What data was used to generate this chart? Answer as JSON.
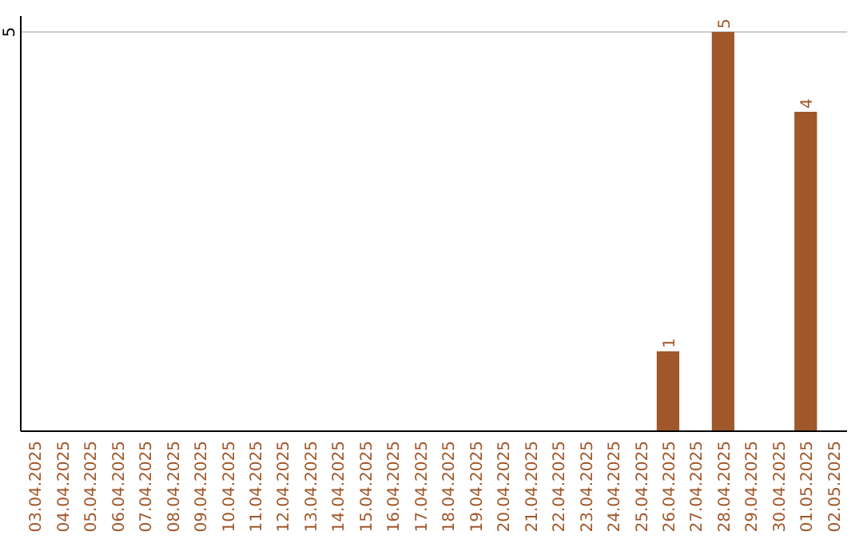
{
  "chart_data": {
    "type": "bar",
    "categories": [
      "03.04.2025",
      "04.04.2025",
      "05.04.2025",
      "06.04.2025",
      "07.04.2025",
      "08.04.2025",
      "09.04.2025",
      "10.04.2025",
      "11.04.2025",
      "12.04.2025",
      "13.04.2025",
      "14.04.2025",
      "15.04.2025",
      "16.04.2025",
      "17.04.2025",
      "18.04.2025",
      "19.04.2025",
      "20.04.2025",
      "21.04.2025",
      "22.04.2025",
      "23.04.2025",
      "24.04.2025",
      "25.04.2025",
      "26.04.2025",
      "27.04.2025",
      "28.04.2025",
      "29.04.2025",
      "30.04.2025",
      "01.05.2025",
      "02.05.2025"
    ],
    "values": [
      null,
      null,
      null,
      null,
      null,
      null,
      null,
      null,
      null,
      null,
      null,
      null,
      null,
      null,
      null,
      null,
      null,
      null,
      null,
      null,
      null,
      null,
      null,
      1,
      null,
      5,
      null,
      null,
      4,
      null
    ],
    "data_labels": true,
    "color": "#a0572a",
    "ylim": [
      0,
      5.2
    ],
    "yticks": [
      {
        "value": 0,
        "label": null
      },
      5
    ],
    "grid": "y"
  }
}
